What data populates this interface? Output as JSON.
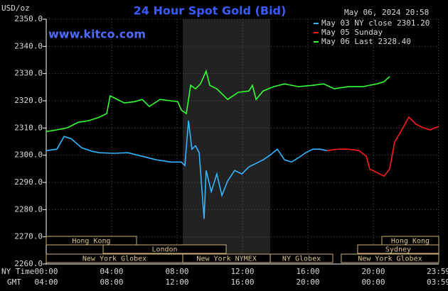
{
  "chart_data": {
    "type": "line",
    "title": "24 Hour Spot Gold (Bid)",
    "y_label": "USD/oz",
    "timestamp": "May 06, 2024 20:58",
    "source": "www.kitco.com",
    "x_row_label": "NY Time",
    "x2_row_label": "GMT",
    "xlim": [
      0,
      24
    ],
    "xticks": [
      {
        "value": 0,
        "label": "00:00"
      },
      {
        "value": 4,
        "label": "04:00"
      },
      {
        "value": 8,
        "label": "08:00"
      },
      {
        "value": 12,
        "label": "12:00"
      },
      {
        "value": 16,
        "label": "16:00"
      },
      {
        "value": 20,
        "label": "20:00"
      },
      {
        "value": 23.98,
        "label": "23:59"
      }
    ],
    "x2tick_labels": [
      "04:00",
      "08:00",
      "12:00",
      "16:00",
      "20:00",
      "00:00",
      "03:59"
    ],
    "ylim": [
      2260,
      2350
    ],
    "yticks": [
      {
        "value": 2260,
        "label": "2260.0"
      },
      {
        "value": 2270,
        "label": "2270.0"
      },
      {
        "value": 2280,
        "label": "2280.0"
      },
      {
        "value": 2290,
        "label": "2290.0"
      },
      {
        "value": 2300,
        "label": "2300.0"
      },
      {
        "value": 2310,
        "label": "2310.0"
      },
      {
        "value": 2320,
        "label": "2320.0"
      },
      {
        "value": 2330,
        "label": "2330.0"
      },
      {
        "value": 2340,
        "label": "2340.0"
      },
      {
        "value": 2350,
        "label": "2350.0"
      }
    ],
    "grid": true,
    "series": [
      {
        "name": "May 03 NY close 2301.20",
        "color": "#33b5ff",
        "x": [
          0,
          0.65,
          1.09,
          1.52,
          2.17,
          2.83,
          3.26,
          4.13,
          5,
          5.87,
          6.74,
          7.61,
          8.26,
          8.48,
          8.7,
          8.91,
          9.13,
          9.35,
          9.65,
          9.78,
          10.09,
          10.43,
          10.74,
          11.09,
          11.52,
          11.96,
          12.39,
          12.83,
          13.26,
          13.7,
          14.13,
          14.57,
          15,
          15.43,
          15.87,
          16.3,
          16.74,
          17.17
        ],
        "values": [
          2301.7,
          2302.2,
          2306.9,
          2306.1,
          2302.7,
          2301.4,
          2300.9,
          2300.7,
          2300.9,
          2299.6,
          2298.3,
          2297.5,
          2297.5,
          2296.2,
          2312.7,
          2302.2,
          2303.5,
          2300.9,
          2276.6,
          2294.4,
          2286.6,
          2293.1,
          2285.2,
          2290.5,
          2294.4,
          2293.1,
          2295.7,
          2297,
          2298.3,
          2300.1,
          2302.2,
          2298.3,
          2297.5,
          2299.1,
          2300.9,
          2302.2,
          2302.2,
          2301.7
        ]
      },
      {
        "name": "May 05 Sunday",
        "color": "#ff1a1a",
        "x": [
          17.17,
          17.83,
          18.48,
          19.13,
          19.57,
          19.78,
          20.22,
          20.65,
          21,
          21.3,
          21.74,
          22.17,
          22.61,
          23.04,
          23.48,
          24
        ],
        "values": [
          2301.7,
          2302.2,
          2302.2,
          2301.7,
          2299.6,
          2294.9,
          2293.6,
          2292.3,
          2294.9,
          2304.8,
          2309.3,
          2314,
          2311.4,
          2310.1,
          2309.3,
          2310.6
        ]
      },
      {
        "name": "May 06 Last 2328.40",
        "color": "#33ff33",
        "x": [
          0,
          0.65,
          1.3,
          1.96,
          2.61,
          3.26,
          3.7,
          3.91,
          4.35,
          4.78,
          5.43,
          5.87,
          6.3,
          6.96,
          7.61,
          8.04,
          8.26,
          8.57,
          8.83,
          9.13,
          9.43,
          9.78,
          10,
          10.43,
          11.09,
          11.74,
          12.39,
          12.61,
          12.83,
          13.26,
          13.91,
          14.57,
          15.43,
          16.3,
          16.96,
          17.61,
          18.48,
          19.35,
          20.22,
          20.65,
          21
        ],
        "values": [
          2308.7,
          2309.3,
          2310.1,
          2312.1,
          2312.7,
          2314,
          2315.3,
          2321.8,
          2320.5,
          2319.2,
          2319.7,
          2320.5,
          2317.9,
          2320.5,
          2320,
          2319.7,
          2316.6,
          2315.3,
          2325.7,
          2324.4,
          2326.2,
          2330.9,
          2325.7,
          2324.4,
          2320.5,
          2323.1,
          2323.6,
          2325.7,
          2320.5,
          2323.6,
          2325.2,
          2326.2,
          2325.2,
          2325.7,
          2326.2,
          2324.4,
          2325.2,
          2325.2,
          2326.2,
          2327,
          2328.9
        ]
      }
    ],
    "sessions": [
      {
        "label": "Hong Kong",
        "start": 0,
        "end": 5.52
      },
      {
        "label": "London",
        "start": 3.48,
        "end": 11
      },
      {
        "label": "New York Globex",
        "start": 0,
        "end": 8.35
      },
      {
        "label": "New York NYMEX",
        "start": 8.35,
        "end": 13.7
      },
      {
        "label": "NY Globex",
        "start": 13.7,
        "end": 17.52
      },
      {
        "label": "Hong Kong",
        "start": 20.52,
        "end": 24
      },
      {
        "label": "Sydney",
        "start": 19.04,
        "end": 24
      },
      {
        "label": "New York Globex",
        "start": 18.04,
        "end": 24
      }
    ]
  }
}
